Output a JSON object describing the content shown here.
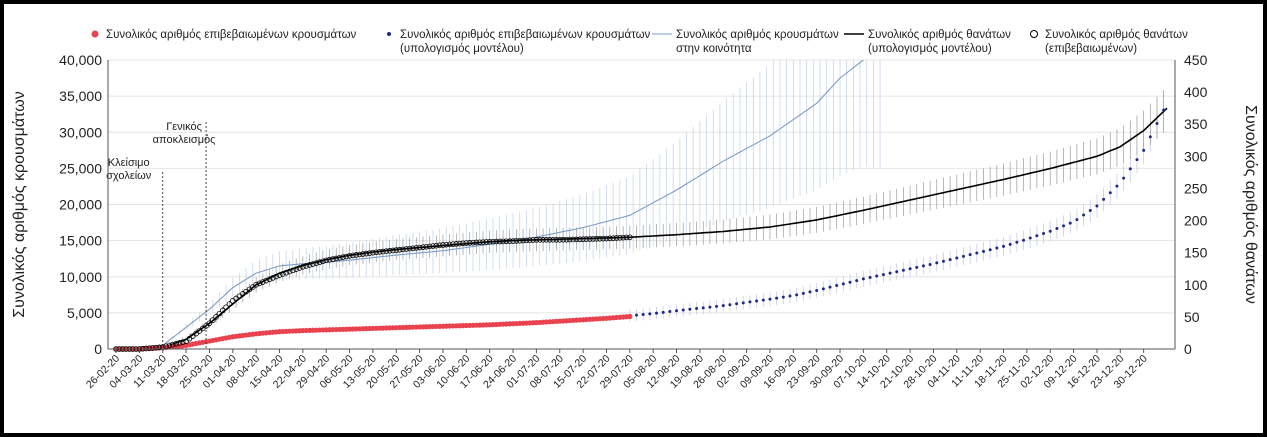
{
  "chart_data": {
    "type": "line",
    "ylabel_left": "Συνολικός αριθμός κρουσμάτων",
    "ylabel_right": "Συνολικός αριθμός θανάτων",
    "ylim_left": [
      0,
      40000
    ],
    "ylim_right": [
      0,
      450
    ],
    "left_ticks": [
      "0",
      "5,000",
      "10,000",
      "15,000",
      "20,000",
      "25,000",
      "30,000",
      "35,000",
      "40,000"
    ],
    "right_ticks": [
      "0",
      "50",
      "100",
      "150",
      "200",
      "250",
      "300",
      "350",
      "400",
      "450"
    ],
    "x_ticks": [
      "26-02-20",
      "04-03-20",
      "11-03-20",
      "18-03-20",
      "25-03-20",
      "01-04-20",
      "08-04-20",
      "15-04-20",
      "22-04-20",
      "29-04-20",
      "06-05-20",
      "13-05-20",
      "20-05-20",
      "27-05-20",
      "03-06-20",
      "10-06-20",
      "17-06-20",
      "24-06-20",
      "01-07-20",
      "08-07-20",
      "15-07-20",
      "22-07-20",
      "29-07-20",
      "05-08-20",
      "12-08-20",
      "19-08-20",
      "26-08-20",
      "02-09-20",
      "09-09-20",
      "16-09-20",
      "23-09-20",
      "30-09-20",
      "07-10-20",
      "14-10-20",
      "21-10-20",
      "28-10-20",
      "04-11-20",
      "11-11-20",
      "18-11-20",
      "25-11-20",
      "02-12-20",
      "09-12-20",
      "16-12-20",
      "23-12-20",
      "30-12-20"
    ],
    "legend": [
      {
        "label_line1": "Συνολικός αριθμός επιβεβαιωμένων κρουσμάτων",
        "label_line2": "",
        "marker": "red-dot",
        "color": "#e8434f"
      },
      {
        "label_line1": "Συνολικός αριθμός επιβεβαιωμένων κρουσμάτων",
        "label_line2": "(υπολογισμός μοντέλου)",
        "marker": "navy-dot",
        "color": "#1d2a8c"
      },
      {
        "label_line1": "Συνολικός αριθμός κρουσμάτων",
        "label_line2": "στην κοινότητα",
        "marker": "thin-line",
        "color": "#7b9cc9"
      },
      {
        "label_line1": "Συνολικός αριθμός θανάτων",
        "label_line2": "(υπολογισμός μοντέλου)",
        "marker": "thick-line",
        "color": "#000000"
      },
      {
        "label_line1": "Συνολικός αριθμός θανάτων",
        "label_line2": "(επιβεβαιωμένων)",
        "marker": "open-circle",
        "color": "#000000"
      }
    ],
    "annotations": [
      {
        "lines": [
          "Κλείσιμο",
          "σχολείων"
        ],
        "date": "10-03-20"
      },
      {
        "lines": [
          "Γενικός",
          "αποκλεισμός"
        ],
        "date": "23-03-20"
      }
    ],
    "series": [
      {
        "name": "Συνολικός αριθμός επιβεβαιωμένων κρουσμάτων",
        "axis": "left",
        "color": "#e8434f",
        "x": [
          0,
          7,
          14,
          21,
          28,
          35,
          42,
          49,
          56,
          63,
          70,
          77,
          84,
          91,
          98,
          105,
          112,
          119,
          126,
          133,
          140,
          147,
          154
        ],
        "values": [
          0,
          10,
          150,
          500,
          1100,
          1700,
          2100,
          2400,
          2550,
          2650,
          2750,
          2850,
          2950,
          3050,
          3150,
          3250,
          3350,
          3500,
          3650,
          3850,
          4050,
          4250,
          4500
        ]
      },
      {
        "name": "Συνολικός αριθμός επιβεβαιωμένων κρουσμάτων (υπολογισμός μοντέλου)",
        "axis": "left",
        "color": "#1d2a8c",
        "x": [
          154,
          161,
          168,
          175,
          182,
          189,
          196,
          203,
          210,
          217,
          224,
          231,
          238,
          245,
          252,
          259,
          266,
          273,
          280,
          287,
          294,
          301,
          308,
          315
        ],
        "values": [
          4600,
          4900,
          5300,
          5650,
          6000,
          6450,
          6900,
          7400,
          8100,
          8900,
          9700,
          10400,
          11100,
          11800,
          12600,
          13400,
          14200,
          15200,
          16300,
          17600,
          19800,
          23000,
          27500,
          34000
        ]
      },
      {
        "name": "Συνολικός αριθμός κρουσμάτων στην κοινότητα",
        "axis": "left",
        "color": "#7b9cc9",
        "x": [
          0,
          14,
          21,
          28,
          35,
          42,
          49,
          56,
          63,
          70,
          84,
          98,
          112,
          126,
          140,
          154,
          168,
          182,
          196,
          210,
          217,
          224
        ],
        "values": [
          0,
          500,
          3000,
          5500,
          8500,
          10500,
          11500,
          11800,
          12000,
          12300,
          13000,
          13600,
          14500,
          15500,
          16800,
          18500,
          22000,
          26000,
          29500,
          34000,
          37500,
          40000
        ]
      },
      {
        "name": "Συνολικός αριθμός θανάτων (υπολογισμός μοντέλου)",
        "axis": "right",
        "color": "#000000",
        "x": [
          0,
          14,
          21,
          28,
          35,
          42,
          49,
          56,
          63,
          70,
          77,
          84,
          91,
          98,
          105,
          112,
          119,
          126,
          133,
          140,
          147,
          154,
          168,
          182,
          196,
          210,
          224,
          238,
          252,
          266,
          280,
          294,
          301,
          308,
          315
        ],
        "values": [
          0,
          2,
          15,
          40,
          70,
          100,
          118,
          130,
          139,
          146,
          151,
          155,
          158,
          161,
          164,
          167,
          169,
          170,
          171,
          172,
          173,
          174,
          178,
          183,
          190,
          201,
          216,
          232,
          248,
          264,
          281,
          300,
          315,
          340,
          375
        ]
      },
      {
        "name": "Συνολικός αριθμός θανάτων (επιβεβαιωμένων)",
        "axis": "right",
        "color": "#000000",
        "x": [
          0,
          7,
          14,
          21,
          28,
          35,
          42,
          49,
          56,
          63,
          70,
          77,
          84,
          91,
          98,
          105,
          112,
          119,
          126,
          133,
          140,
          147,
          154
        ],
        "values": [
          0,
          0,
          3,
          12,
          40,
          75,
          100,
          115,
          128,
          138,
          145,
          150,
          154,
          158,
          162,
          165,
          167,
          168,
          170,
          170,
          171,
          172,
          174
        ]
      }
    ]
  }
}
